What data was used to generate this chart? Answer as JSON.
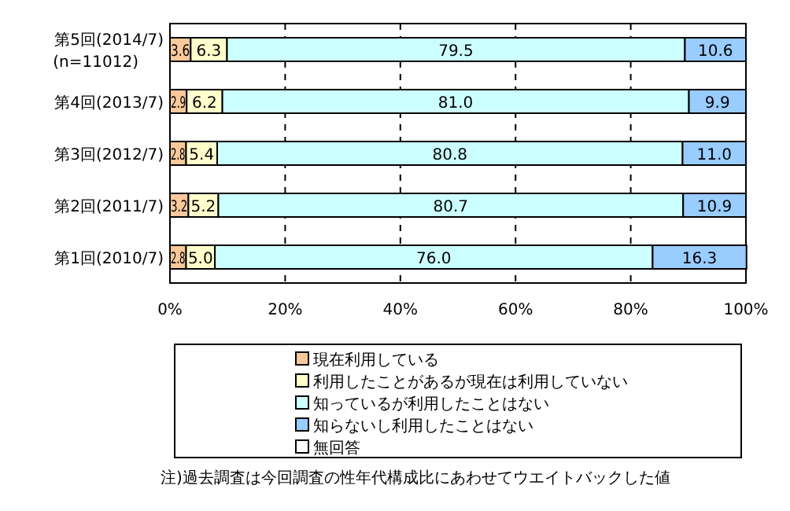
{
  "chart_data": {
    "type": "bar",
    "orientation": "horizontal",
    "stacked": true,
    "grid": "x",
    "legend": "bottom",
    "categories": [
      "第5回(2014/7)\n(n=11012)",
      "第4回(2013/7)",
      "第3回(2012/7)",
      "第2回(2011/7)",
      "第1回(2010/7)"
    ],
    "series": [
      {
        "name": "現在利用している",
        "color": "#f9c89b",
        "values": [
          3.6,
          2.9,
          2.8,
          3.2,
          2.8
        ],
        "value_labels": [
          "3.6",
          "2.9",
          "2.8",
          "3.2",
          "2.8"
        ]
      },
      {
        "name": "利用したことがあるが現在は利用していない",
        "color": "#ffffcc",
        "values": [
          6.3,
          6.2,
          5.4,
          5.2,
          5.0
        ],
        "value_labels": [
          "6.3",
          "6.2",
          "5.4",
          "5.2",
          "5.0"
        ]
      },
      {
        "name": "知っているが利用したことはない",
        "color": "#ccffff",
        "values": [
          79.5,
          81.0,
          80.8,
          80.7,
          76.0
        ],
        "value_labels": [
          "79.5",
          "81.0",
          "80.8",
          "80.7",
          "76.0"
        ]
      },
      {
        "name": "知らないし利用したことはない",
        "color": "#99ccff",
        "values": [
          10.6,
          9.9,
          11.0,
          10.9,
          16.3
        ],
        "value_labels": [
          "10.6",
          "9.9",
          "11.0",
          "10.9",
          "16.3"
        ]
      },
      {
        "name": "無回答",
        "color": "#ffffff",
        "values": [
          null,
          null,
          null,
          null,
          null
        ]
      }
    ],
    "xlim": [
      0,
      100
    ],
    "xticks": [
      {
        "value": 0,
        "label": "0%"
      },
      {
        "value": 20,
        "label": "20%"
      },
      {
        "value": 40,
        "label": "40%"
      },
      {
        "value": 60,
        "label": "60%"
      },
      {
        "value": 80,
        "label": "80%"
      },
      {
        "value": 100,
        "label": "100%"
      }
    ],
    "annotations": [
      "注)過去調査は今回調査の性年代構成比にあわせてウエイトバックした値"
    ]
  }
}
